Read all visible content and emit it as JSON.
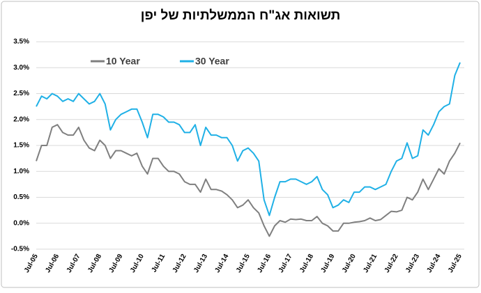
{
  "chart_data": {
    "type": "line",
    "title": "תשואות אג\"ח הממשלתיות של יפן",
    "categories": [
      "Jul-05",
      null,
      null,
      null,
      "Jul-06",
      null,
      null,
      null,
      "Jul-07",
      null,
      null,
      null,
      "Jul-08",
      null,
      null,
      null,
      "Jul-09",
      null,
      null,
      null,
      "Jul-10",
      null,
      null,
      null,
      "Jul-11",
      null,
      null,
      null,
      "Jul-12",
      null,
      null,
      null,
      "Jul-13",
      null,
      null,
      null,
      "Jul-14",
      null,
      null,
      null,
      "Jul-15",
      null,
      null,
      null,
      "Jul-16",
      null,
      null,
      null,
      "Jul-17",
      null,
      null,
      null,
      "Jul-18",
      null,
      null,
      null,
      "Jul-19",
      null,
      null,
      null,
      "Jul-20",
      null,
      null,
      null,
      "Jul-21",
      null,
      null,
      null,
      "Jul-22",
      null,
      null,
      null,
      "Jul-23",
      null,
      null,
      null,
      "Jul-24",
      null,
      null,
      null,
      "Jul-25"
    ],
    "series": [
      {
        "name": "10 Year",
        "color": "#7f7f7f",
        "values": [
          1.2,
          1.5,
          1.5,
          1.85,
          1.9,
          1.75,
          1.7,
          1.7,
          1.85,
          1.6,
          1.45,
          1.4,
          1.6,
          1.5,
          1.25,
          1.4,
          1.4,
          1.35,
          1.3,
          1.35,
          1.1,
          0.95,
          1.25,
          1.25,
          1.1,
          1.0,
          1.0,
          0.95,
          0.8,
          0.75,
          0.75,
          0.6,
          0.85,
          0.65,
          0.65,
          0.62,
          0.55,
          0.45,
          0.3,
          0.35,
          0.45,
          0.3,
          0.2,
          -0.05,
          -0.25,
          -0.05,
          0.05,
          0.02,
          0.08,
          0.07,
          0.08,
          0.05,
          0.05,
          0.13,
          0.0,
          -0.05,
          -0.15,
          -0.15,
          0.0,
          0.0,
          0.02,
          0.03,
          0.05,
          0.1,
          0.05,
          0.07,
          0.15,
          0.23,
          0.22,
          0.25,
          0.5,
          0.45,
          0.6,
          0.85,
          0.65,
          0.85,
          1.05,
          0.95,
          1.2,
          1.35,
          1.55
        ]
      },
      {
        "name": "30 Year",
        "color": "#1fb0e6",
        "values": [
          2.25,
          2.45,
          2.4,
          2.5,
          2.45,
          2.35,
          2.4,
          2.35,
          2.5,
          2.4,
          2.3,
          2.35,
          2.5,
          2.3,
          1.8,
          2.0,
          2.1,
          2.15,
          2.2,
          2.2,
          1.95,
          1.65,
          2.1,
          2.1,
          2.05,
          1.95,
          1.95,
          1.9,
          1.75,
          1.75,
          1.9,
          1.5,
          1.85,
          1.7,
          1.7,
          1.65,
          1.65,
          1.5,
          1.2,
          1.4,
          1.45,
          1.35,
          1.2,
          0.45,
          0.15,
          0.5,
          0.8,
          0.8,
          0.85,
          0.85,
          0.8,
          0.75,
          0.8,
          0.9,
          0.65,
          0.55,
          0.3,
          0.35,
          0.45,
          0.4,
          0.6,
          0.6,
          0.7,
          0.7,
          0.65,
          0.7,
          0.75,
          1.0,
          1.2,
          1.25,
          1.55,
          1.25,
          1.3,
          1.8,
          1.7,
          1.9,
          2.15,
          2.25,
          2.3,
          2.85,
          3.1
        ]
      }
    ],
    "ylim": [
      -0.5,
      3.5
    ],
    "yticks": [
      {
        "value": -0.5,
        "label": "-0.5%"
      },
      {
        "value": 0,
        "label": "0.0%"
      },
      {
        "value": 0.5,
        "label": "0.5%"
      },
      {
        "value": 1,
        "label": "1.0%"
      },
      {
        "value": 1.5,
        "label": "1.5%"
      },
      {
        "value": 2,
        "label": "2.0%"
      },
      {
        "value": 2.5,
        "label": "2.5%"
      },
      {
        "value": 3,
        "label": "3.0%"
      },
      {
        "value": 3.5,
        "label": "3.5%"
      }
    ],
    "grid": true
  }
}
